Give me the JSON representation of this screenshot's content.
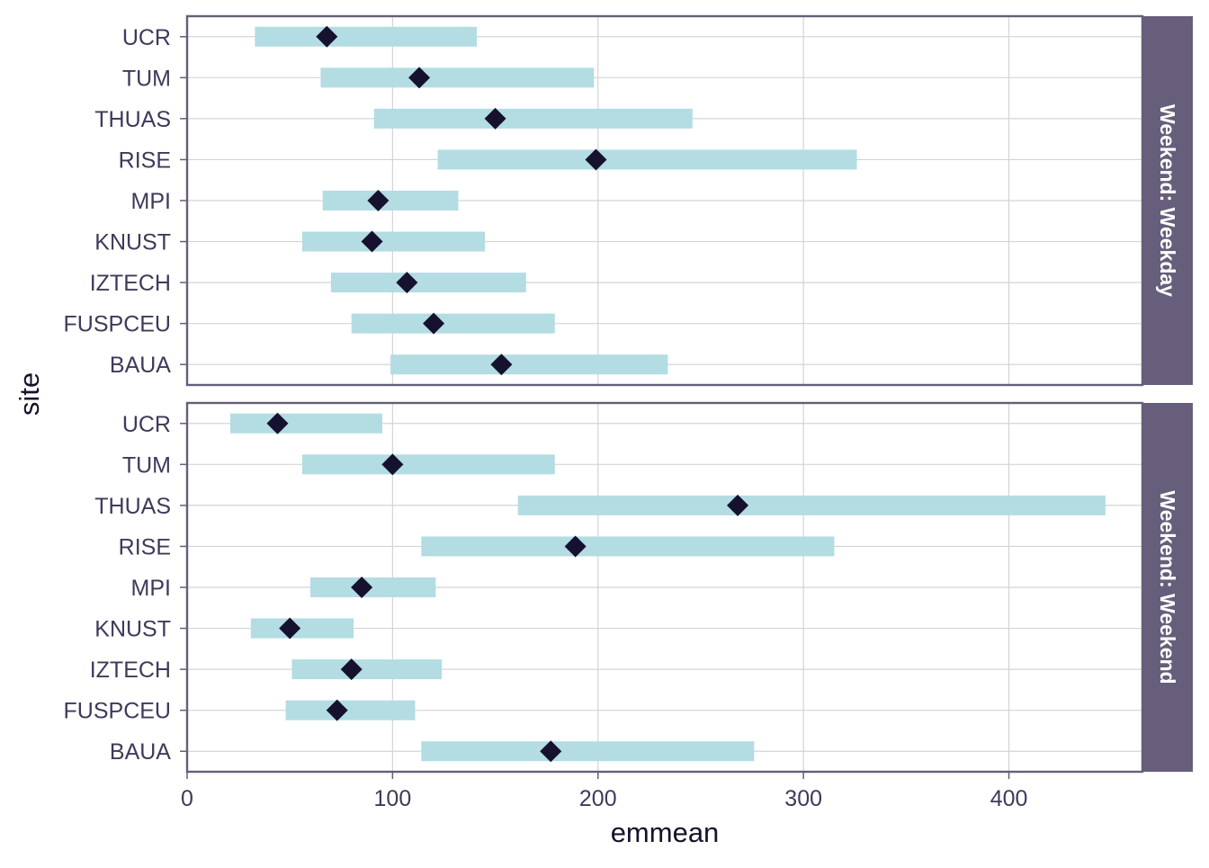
{
  "chart_data": {
    "type": "interval",
    "xlabel": "emmean",
    "ylabel": "site",
    "xlim": [
      0,
      465
    ],
    "x_ticks": [
      "0",
      "100",
      "200",
      "300",
      "400"
    ],
    "x_tick_values": [
      0,
      100,
      200,
      300,
      400
    ],
    "categories": [
      "UCR",
      "TUM",
      "THUAS",
      "RISE",
      "MPI",
      "KNUST",
      "IZTECH",
      "FUSPCEU",
      "BAUA"
    ],
    "grid": true,
    "legend": "none",
    "colors": {
      "interval": "#b3dce3",
      "point": "#15112f",
      "strip": "#665e7b",
      "frame": "#665e7b",
      "grid": "#d4d4d8"
    },
    "panels": [
      {
        "strip_label": "Weekend: Weekday",
        "series": [
          {
            "site": "UCR",
            "emmean": 68,
            "lower": 33,
            "upper": 141
          },
          {
            "site": "TUM",
            "emmean": 113,
            "lower": 65,
            "upper": 198
          },
          {
            "site": "THUAS",
            "emmean": 150,
            "lower": 91,
            "upper": 246
          },
          {
            "site": "RISE",
            "emmean": 199,
            "lower": 122,
            "upper": 326
          },
          {
            "site": "MPI",
            "emmean": 93,
            "lower": 66,
            "upper": 132
          },
          {
            "site": "KNUST",
            "emmean": 90,
            "lower": 56,
            "upper": 145
          },
          {
            "site": "IZTECH",
            "emmean": 107,
            "lower": 70,
            "upper": 165
          },
          {
            "site": "FUSPCEU",
            "emmean": 120,
            "lower": 80,
            "upper": 179
          },
          {
            "site": "BAUA",
            "emmean": 153,
            "lower": 99,
            "upper": 234
          }
        ]
      },
      {
        "strip_label": "Weekend: Weekend",
        "series": [
          {
            "site": "UCR",
            "emmean": 44,
            "lower": 21,
            "upper": 95
          },
          {
            "site": "TUM",
            "emmean": 100,
            "lower": 56,
            "upper": 179
          },
          {
            "site": "THUAS",
            "emmean": 268,
            "lower": 161,
            "upper": 447
          },
          {
            "site": "RISE",
            "emmean": 189,
            "lower": 114,
            "upper": 315
          },
          {
            "site": "MPI",
            "emmean": 85,
            "lower": 60,
            "upper": 121
          },
          {
            "site": "KNUST",
            "emmean": 50,
            "lower": 31,
            "upper": 81
          },
          {
            "site": "IZTECH",
            "emmean": 80,
            "lower": 51,
            "upper": 124
          },
          {
            "site": "FUSPCEU",
            "emmean": 73,
            "lower": 48,
            "upper": 111
          },
          {
            "site": "BAUA",
            "emmean": 177,
            "lower": 114,
            "upper": 276
          }
        ]
      }
    ]
  }
}
